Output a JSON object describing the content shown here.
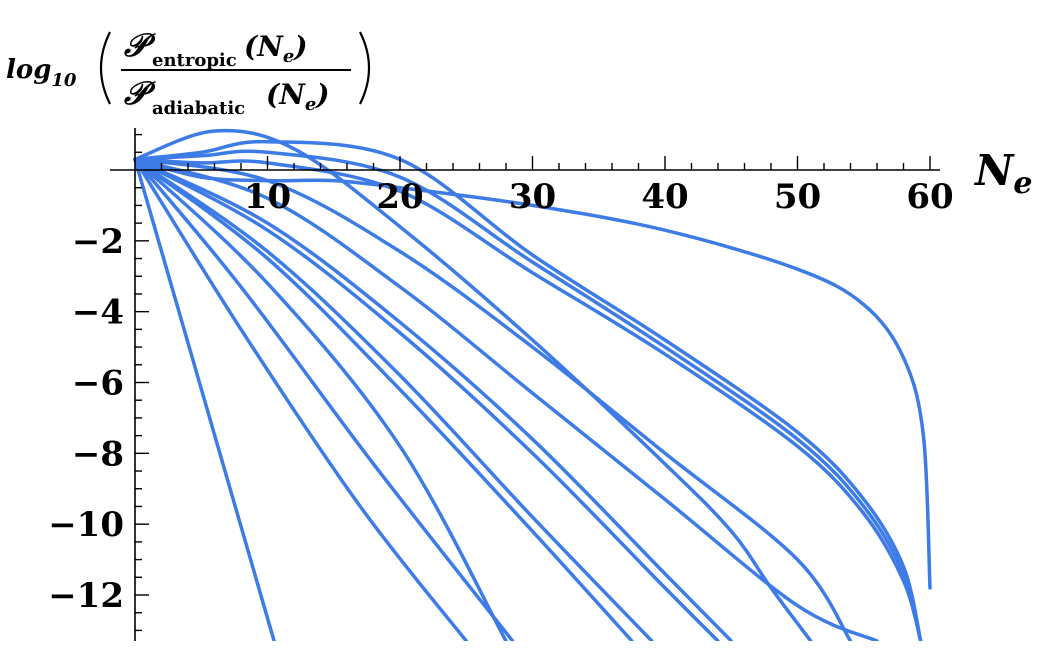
{
  "chart_data": {
    "type": "line",
    "title": "",
    "xlabel": {
      "main": "N",
      "sub": "e"
    },
    "ylabel": {
      "prefix": "log",
      "prefix_sub": "10",
      "num_symbol": "𝒫",
      "num_sub": "entropic",
      "den_symbol": "𝒫",
      "den_sub": "adiabatic",
      "arg": "(N",
      "arg_sub": "e",
      "arg_close": ")"
    },
    "xlim": [
      0,
      60
    ],
    "ylim": [
      -13.3,
      1.2
    ],
    "x_ticks": [
      10,
      20,
      30,
      40,
      50,
      60
    ],
    "x_tick_labels": [
      "10",
      "20",
      "30",
      "40",
      "50",
      "60"
    ],
    "y_ticks": [
      -2,
      -4,
      -6,
      -8,
      -10,
      -12
    ],
    "y_tick_labels": [
      "−2",
      "−4",
      "−6",
      "−8",
      "−10",
      "−12"
    ],
    "line_color": "#3d7be6",
    "series": [
      {
        "x": [
          0,
          10.5
        ],
        "y": [
          0.3,
          -13.3
        ]
      },
      {
        "x": [
          0,
          8,
          17,
          25
        ],
        "y": [
          0.3,
          -4.5,
          -9.5,
          -13.3
        ]
      },
      {
        "x": [
          0,
          8,
          18,
          28.5
        ],
        "y": [
          0.3,
          -3.3,
          -8.3,
          -13.3
        ]
      },
      {
        "x": [
          0,
          10,
          20,
          28
        ],
        "y": [
          0.3,
          -3.2,
          -7.8,
          -13.3
        ]
      },
      {
        "x": [
          0,
          10,
          20,
          30,
          37.5
        ],
        "y": [
          0.3,
          -2.5,
          -6.2,
          -10.2,
          -13.3
        ]
      },
      {
        "x": [
          0,
          10,
          20,
          30,
          39
        ],
        "y": [
          0.3,
          -2.3,
          -5.8,
          -9.8,
          -13.3
        ]
      },
      {
        "x": [
          0,
          10,
          20,
          30,
          40,
          44
        ],
        "y": [
          0.3,
          -1.7,
          -4.6,
          -8.0,
          -11.8,
          -13.3
        ]
      },
      {
        "x": [
          0,
          10,
          20,
          30,
          40,
          45
        ],
        "y": [
          0.3,
          -1.5,
          -4.3,
          -7.6,
          -11.4,
          -13.3
        ]
      },
      {
        "x": [
          0,
          10,
          20,
          30,
          40,
          50,
          56
        ],
        "y": [
          0.3,
          -0.8,
          -3.3,
          -6.3,
          -9.3,
          -12.3,
          -13.3
        ]
      },
      {
        "x": [
          0,
          10,
          20,
          30,
          40,
          50,
          54
        ],
        "y": [
          0.3,
          -0.3,
          -2.3,
          -5.0,
          -8.0,
          -11.0,
          -13.3
        ]
      },
      {
        "x": [
          0,
          6,
          12,
          20,
          30,
          40,
          45,
          48,
          51
        ],
        "y": [
          0.3,
          1.1,
          0.6,
          -1.6,
          -4.8,
          -8.3,
          -10.2,
          -11.8,
          -13.3
        ]
      },
      {
        "x": [
          0,
          5,
          10,
          20,
          30,
          40,
          50,
          55,
          58,
          59.3
        ],
        "y": [
          0.3,
          0.5,
          0.8,
          0.3,
          -2.4,
          -4.8,
          -7.4,
          -9.3,
          -11.2,
          -13.3
        ]
      },
      {
        "x": [
          0,
          5,
          10,
          20,
          30,
          40,
          50,
          55,
          58,
          59.3
        ],
        "y": [
          0.3,
          0.4,
          0.5,
          -0.2,
          -2.6,
          -5.0,
          -7.6,
          -9.5,
          -11.4,
          -13.3
        ]
      },
      {
        "x": [
          0,
          5,
          10,
          20,
          30,
          40,
          50,
          55,
          58,
          59.3
        ],
        "y": [
          0.3,
          0.2,
          0.2,
          -0.6,
          -2.9,
          -5.2,
          -7.8,
          -9.7,
          -11.6,
          -13.3
        ]
      },
      {
        "x": [
          0,
          5,
          10,
          15,
          20,
          30,
          40,
          50,
          55,
          58,
          59.5,
          60
        ],
        "y": [
          0.3,
          -0.2,
          -0.3,
          -0.3,
          -0.5,
          -1.0,
          -1.7,
          -2.8,
          -3.8,
          -5.3,
          -7.5,
          -11.8
        ]
      }
    ]
  }
}
